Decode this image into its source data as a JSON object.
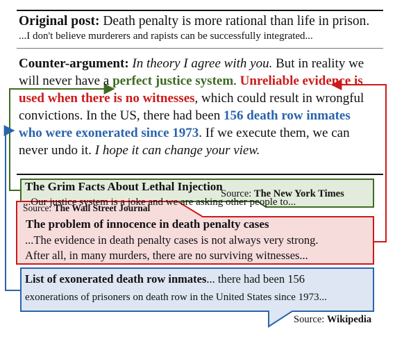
{
  "post": {
    "heading": "Original post:",
    "claim": " Death penalty is more rational than life in prison.",
    "excerpt": "...I don't believe murderers and rapists can be successfully integrated..."
  },
  "counter": {
    "heading": "Counter-argument:",
    "italic1": " In theory I agree with you.",
    "text1": " But in reality we",
    "text2a": "will never have a ",
    "green": "perfect justice system",
    "text2b": ". ",
    "red1": "Unreliable evidence is",
    "red2": "used when there is no witnesses",
    "text3": ", which could result in wrongful",
    "text4a": "convictions. In the US, there had been ",
    "blue1": "156 death row inmates",
    "blue2": "who were exonerated since 1973",
    "text5": ". If we execute them, we can",
    "text6": "never undo it. ",
    "italic2": "I hope it can change your view."
  },
  "evidence": [
    {
      "title": "The Grim Facts About Lethal Injection",
      "body": "...Our justice system is a joke and we are asking other people to...",
      "source_label": "Source: ",
      "source_name": "The New York Times"
    },
    {
      "source_label": "Source: ",
      "source_name": "The Wall Street Journal",
      "title": "The problem of innocence in death penalty cases",
      "body1": "...The evidence in death penalty cases is not always very strong.",
      "body2": "After all, in many murders, there are no surviving witnesses..."
    },
    {
      "title": "List of exonerated death row inmates",
      "body1": "... there had been 156",
      "body2": "exonerations of prisoners on death row in the United States since 1973...",
      "source_label": "Source: ",
      "source_name": "Wikipedia"
    }
  ],
  "colors": {
    "green_fill": "#e3ecdc",
    "green_stroke": "#3e6b23",
    "red_fill": "#f7dcdc",
    "red_stroke": "#cc1a1a",
    "blue_fill": "#dde6f2",
    "blue_stroke": "#2a64ad"
  }
}
